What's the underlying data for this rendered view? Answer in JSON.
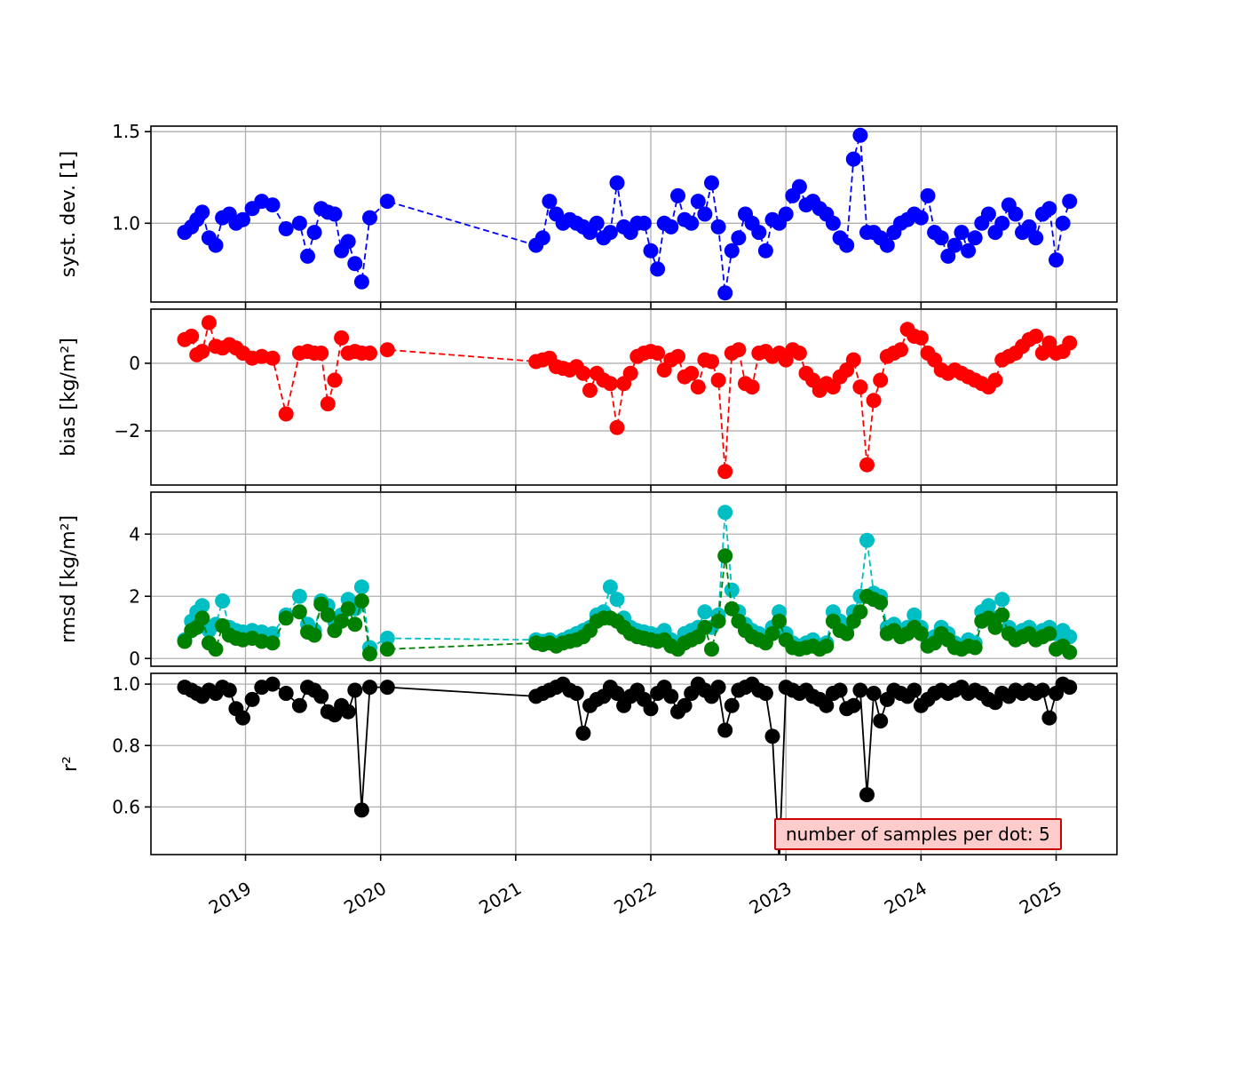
{
  "chart_data": {
    "type": "scatter",
    "title": "",
    "xlabel": "",
    "xlim": [
      2018.3,
      2025.45
    ],
    "x_ticks": [
      2019,
      2020,
      2021,
      2022,
      2023,
      2024,
      2025
    ],
    "x_tick_labels": [
      "2019",
      "2020",
      "2021",
      "2022",
      "2023",
      "2024",
      "2025"
    ],
    "grid": true,
    "x": [
      2018.55,
      2018.6,
      2018.64,
      2018.68,
      2018.73,
      2018.78,
      2018.83,
      2018.88,
      2018.93,
      2018.98,
      2019.05,
      2019.12,
      2019.2,
      2019.3,
      2019.4,
      2019.46,
      2019.51,
      2019.56,
      2019.61,
      2019.66,
      2019.71,
      2019.76,
      2019.81,
      2019.86,
      2019.92,
      2020.05,
      2021.15,
      2021.2,
      2021.25,
      2021.3,
      2021.35,
      2021.4,
      2021.45,
      2021.5,
      2021.55,
      2021.6,
      2021.65,
      2021.7,
      2021.75,
      2021.8,
      2021.85,
      2021.9,
      2021.95,
      2022.0,
      2022.05,
      2022.1,
      2022.15,
      2022.2,
      2022.25,
      2022.3,
      2022.35,
      2022.4,
      2022.45,
      2022.5,
      2022.55,
      2022.6,
      2022.65,
      2022.7,
      2022.75,
      2022.8,
      2022.85,
      2022.9,
      2022.95,
      2023.0,
      2023.05,
      2023.1,
      2023.15,
      2023.2,
      2023.25,
      2023.3,
      2023.35,
      2023.4,
      2023.45,
      2023.5,
      2023.55,
      2023.6,
      2023.65,
      2023.7,
      2023.75,
      2023.8,
      2023.85,
      2023.9,
      2023.95,
      2024.0,
      2024.05,
      2024.1,
      2024.15,
      2024.2,
      2024.25,
      2024.3,
      2024.35,
      2024.4,
      2024.45,
      2024.5,
      2024.55,
      2024.6,
      2024.65,
      2024.7,
      2024.75,
      2024.8,
      2024.85,
      2024.9,
      2024.95,
      2025.0,
      2025.05,
      2025.1
    ],
    "panels": [
      {
        "ylabel": "syst. dev. [1]",
        "ytick_labels": [
          "1.0",
          "1.5"
        ],
        "ytick_values": [
          1.0,
          1.5
        ],
        "ylim": [
          0.57,
          1.53
        ],
        "linestyle": "dashed",
        "series": [
          {
            "name": "syst-dev",
            "color": "#0000ff",
            "values": [
              0.95,
              0.98,
              1.02,
              1.06,
              0.92,
              0.88,
              1.03,
              1.05,
              1.0,
              1.02,
              1.08,
              1.12,
              1.1,
              0.97,
              1.0,
              0.82,
              0.95,
              1.08,
              1.06,
              1.05,
              0.85,
              0.9,
              0.78,
              0.68,
              1.03,
              1.12,
              0.88,
              0.92,
              1.12,
              1.05,
              1.0,
              1.02,
              1.0,
              0.98,
              0.95,
              1.0,
              0.92,
              0.95,
              1.22,
              0.98,
              0.95,
              1.0,
              1.0,
              0.85,
              0.75,
              1.0,
              0.98,
              1.15,
              1.02,
              1.0,
              1.12,
              1.05,
              1.22,
              0.98,
              0.62,
              0.85,
              0.92,
              1.05,
              1.0,
              0.95,
              0.85,
              1.02,
              1.0,
              1.05,
              1.15,
              1.2,
              1.1,
              1.12,
              1.08,
              1.05,
              1.0,
              0.92,
              0.88,
              1.35,
              1.48,
              0.95,
              0.95,
              0.92,
              0.88,
              0.95,
              1.0,
              1.02,
              1.05,
              1.03,
              1.15,
              0.95,
              0.92,
              0.82,
              0.88,
              0.95,
              0.85,
              0.92,
              1.0,
              1.05,
              0.95,
              1.0,
              1.1,
              1.05,
              0.95,
              0.98,
              0.92,
              1.05,
              1.08,
              0.8,
              1.0,
              1.12
            ]
          }
        ]
      },
      {
        "ylabel": "bias [kg/m²]",
        "ytick_labels": [
          "−2",
          "0"
        ],
        "ytick_values": [
          -2,
          0
        ],
        "ylim": [
          -3.6,
          1.6
        ],
        "linestyle": "dashed",
        "series": [
          {
            "name": "bias",
            "color": "#ff0000",
            "values": [
              0.7,
              0.8,
              0.25,
              0.35,
              1.2,
              0.5,
              0.45,
              0.55,
              0.45,
              0.3,
              0.15,
              0.2,
              0.15,
              -1.5,
              0.3,
              0.35,
              0.3,
              0.3,
              -1.2,
              -0.5,
              0.75,
              0.3,
              0.35,
              0.3,
              0.3,
              0.4,
              0.05,
              0.1,
              0.15,
              -0.1,
              -0.15,
              -0.2,
              -0.1,
              -0.3,
              -0.8,
              -0.3,
              -0.5,
              -0.6,
              -1.9,
              -0.6,
              -0.3,
              0.2,
              0.3,
              0.35,
              0.3,
              -0.2,
              0.1,
              0.2,
              -0.4,
              -0.3,
              -0.7,
              0.1,
              0.05,
              -0.5,
              -3.2,
              0.3,
              0.4,
              -0.6,
              -0.7,
              0.3,
              0.35,
              0.2,
              0.3,
              0.1,
              0.4,
              0.3,
              -0.3,
              -0.5,
              -0.8,
              -0.6,
              -0.7,
              -0.4,
              -0.2,
              0.1,
              -0.7,
              -3.0,
              -1.1,
              -0.5,
              0.2,
              0.3,
              0.4,
              1.0,
              0.8,
              0.75,
              0.3,
              0.1,
              -0.2,
              -0.3,
              -0.2,
              -0.3,
              -0.4,
              -0.5,
              -0.6,
              -0.7,
              -0.5,
              0.1,
              0.2,
              0.3,
              0.5,
              0.7,
              0.8,
              0.3,
              0.6,
              0.3,
              0.35,
              0.6
            ]
          }
        ]
      },
      {
        "ylabel": "rmsd [kg/m²]",
        "ytick_labels": [
          "0",
          "2",
          "4"
        ],
        "ytick_values": [
          0,
          2,
          4
        ],
        "ylim": [
          -0.25,
          5.35
        ],
        "linestyle": "dashed",
        "series": [
          {
            "name": "rmsd-cyan",
            "color": "#00bfc4",
            "values": [
              0.6,
              1.2,
              1.5,
              1.7,
              0.9,
              1.1,
              1.85,
              1.0,
              0.9,
              0.85,
              0.9,
              0.85,
              0.8,
              1.4,
              2.0,
              1.1,
              0.9,
              1.85,
              1.7,
              1.2,
              1.4,
              1.9,
              1.6,
              2.3,
              0.35,
              0.65,
              0.6,
              0.55,
              0.6,
              0.5,
              0.6,
              0.7,
              0.8,
              0.9,
              1.0,
              1.4,
              1.5,
              2.3,
              1.9,
              1.3,
              1.0,
              0.9,
              0.85,
              0.8,
              0.75,
              0.9,
              0.6,
              0.5,
              0.8,
              0.9,
              1.0,
              1.5,
              1.0,
              1.4,
              4.7,
              2.2,
              1.5,
              1.1,
              0.9,
              0.8,
              0.7,
              1.0,
              1.5,
              0.8,
              0.5,
              0.4,
              0.5,
              0.6,
              0.4,
              0.5,
              1.5,
              1.2,
              1.0,
              1.5,
              2.0,
              3.8,
              2.1,
              2.0,
              1.0,
              1.1,
              0.9,
              1.0,
              1.4,
              1.0,
              0.6,
              0.7,
              1.0,
              0.8,
              0.5,
              0.4,
              0.6,
              0.5,
              1.5,
              1.7,
              1.3,
              1.9,
              1.0,
              0.8,
              0.9,
              1.0,
              0.8,
              0.9,
              1.0,
              0.8,
              0.9,
              0.7
            ]
          },
          {
            "name": "rmsd-green",
            "color": "#008000",
            "values": [
              0.55,
              0.9,
              1.0,
              1.3,
              0.5,
              0.3,
              1.05,
              0.75,
              0.65,
              0.6,
              0.65,
              0.55,
              0.5,
              1.3,
              1.5,
              0.85,
              0.75,
              1.75,
              1.4,
              0.9,
              1.2,
              1.6,
              1.1,
              1.85,
              0.15,
              0.3,
              0.5,
              0.45,
              0.5,
              0.4,
              0.5,
              0.55,
              0.6,
              0.7,
              0.9,
              1.2,
              1.3,
              1.3,
              1.2,
              1.0,
              0.8,
              0.7,
              0.65,
              0.6,
              0.55,
              0.6,
              0.4,
              0.3,
              0.5,
              0.6,
              0.7,
              1.0,
              0.3,
              1.2,
              3.3,
              1.6,
              1.2,
              0.9,
              0.7,
              0.6,
              0.5,
              0.8,
              1.2,
              0.6,
              0.35,
              0.3,
              0.35,
              0.4,
              0.3,
              0.4,
              1.2,
              0.9,
              0.8,
              1.2,
              1.5,
              2.0,
              1.9,
              1.8,
              0.8,
              0.9,
              0.7,
              0.8,
              1.0,
              0.8,
              0.4,
              0.5,
              0.8,
              0.6,
              0.35,
              0.3,
              0.4,
              0.35,
              1.2,
              1.3,
              1.0,
              1.4,
              0.8,
              0.6,
              0.7,
              0.8,
              0.6,
              0.7,
              0.8,
              0.3,
              0.4,
              0.2
            ]
          }
        ]
      },
      {
        "ylabel": "r²",
        "ytick_labels": [
          "0.6",
          "0.8",
          "1.0"
        ],
        "ytick_values": [
          0.6,
          0.8,
          1.0
        ],
        "ylim": [
          0.445,
          1.035
        ],
        "linestyle": "solid",
        "annotation": {
          "text": "number of samples per dot: 5",
          "facecolor": "#ffcccc",
          "edgecolor": "#cc0000"
        },
        "series": [
          {
            "name": "r2",
            "color": "#000000",
            "values": [
              0.99,
              0.98,
              0.97,
              0.96,
              0.98,
              0.97,
              0.99,
              0.98,
              0.92,
              0.89,
              0.95,
              0.99,
              1.0,
              0.97,
              0.93,
              0.99,
              0.98,
              0.96,
              0.91,
              0.9,
              0.93,
              0.91,
              0.98,
              0.59,
              0.99,
              0.99,
              0.96,
              0.97,
              0.98,
              0.99,
              1.0,
              0.98,
              0.97,
              0.84,
              0.93,
              0.95,
              0.96,
              0.99,
              0.97,
              0.93,
              0.96,
              0.98,
              0.95,
              0.92,
              0.97,
              0.99,
              0.96,
              0.91,
              0.93,
              0.97,
              1.0,
              0.98,
              0.96,
              0.99,
              0.85,
              0.93,
              0.98,
              0.99,
              1.0,
              0.98,
              0.97,
              0.83,
              0.42,
              0.99,
              0.98,
              0.97,
              0.98,
              0.96,
              0.95,
              0.93,
              0.97,
              0.98,
              0.92,
              0.93,
              0.98,
              0.64,
              0.97,
              0.88,
              0.95,
              0.98,
              0.97,
              0.96,
              0.98,
              0.93,
              0.95,
              0.97,
              0.98,
              0.97,
              0.98,
              0.99,
              0.97,
              0.98,
              0.97,
              0.95,
              0.94,
              0.97,
              0.96,
              0.98,
              0.97,
              0.98,
              0.97,
              0.98,
              0.89,
              0.97,
              1.0,
              0.99
            ]
          }
        ]
      }
    ]
  }
}
